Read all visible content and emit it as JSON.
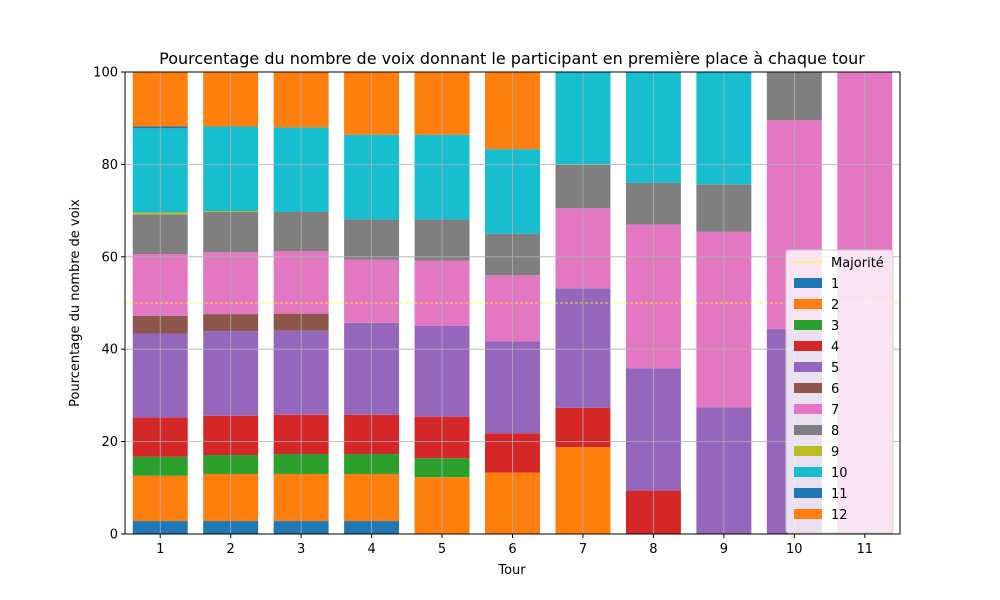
{
  "chart_data": {
    "type": "bar",
    "stacked": true,
    "title": "Pourcentage du nombre de voix donnant le participant en première place à chaque tour",
    "xlabel": "Tour",
    "ylabel": "Pourcentage du nombre de voix",
    "categories": [
      "1",
      "2",
      "3",
      "4",
      "5",
      "6",
      "7",
      "8",
      "9",
      "10",
      "11"
    ],
    "ylim": [
      0,
      100
    ],
    "yticks": [
      0,
      20,
      40,
      60,
      80,
      100
    ],
    "grid": true,
    "legend_position": "lower-right",
    "majority": {
      "name": "Majorité",
      "value": 50,
      "color": "#ffff00"
    },
    "series": [
      {
        "name": "1",
        "color": "#1f77b4",
        "values": [
          2.8,
          2.8,
          2.8,
          2.8,
          0,
          0,
          0,
          0,
          0,
          0,
          0
        ]
      },
      {
        "name": "2",
        "color": "#ff7f0e",
        "values": [
          9.8,
          10.2,
          10.2,
          10.2,
          12.3,
          13.3,
          18.8,
          0,
          0,
          0,
          0
        ]
      },
      {
        "name": "3",
        "color": "#2ca02c",
        "values": [
          4.1,
          4.1,
          4.3,
          4.3,
          4.1,
          0,
          0,
          0,
          0,
          0,
          0
        ]
      },
      {
        "name": "4",
        "color": "#d62728",
        "values": [
          8.5,
          8.5,
          8.5,
          8.5,
          9.0,
          8.5,
          8.5,
          9.4,
          0,
          0,
          0
        ]
      },
      {
        "name": "5",
        "color": "#9467bd",
        "values": [
          18.2,
          18.3,
          18.2,
          19.9,
          19.7,
          19.9,
          25.9,
          26.5,
          27.4,
          44.4,
          0
        ]
      },
      {
        "name": "6",
        "color": "#8c564b",
        "values": [
          3.8,
          3.7,
          3.7,
          0,
          0,
          0,
          0,
          0,
          0,
          0,
          0
        ]
      },
      {
        "name": "7",
        "color": "#e377c2",
        "values": [
          13.4,
          13.4,
          13.5,
          13.7,
          14.1,
          14.3,
          17.3,
          31.1,
          38.0,
          45.2,
          100
        ]
      },
      {
        "name": "8",
        "color": "#7f7f7f",
        "values": [
          8.6,
          8.7,
          8.5,
          8.7,
          8.9,
          9.0,
          9.4,
          9.0,
          10.3,
          10.4,
          0
        ]
      },
      {
        "name": "9",
        "color": "#bcbd22",
        "values": [
          0.4,
          0.2,
          0,
          0,
          0,
          0,
          0,
          0,
          0,
          0,
          0
        ]
      },
      {
        "name": "10",
        "color": "#17becf",
        "values": [
          18.2,
          18.3,
          18.3,
          18.3,
          18.3,
          18.3,
          20.1,
          24.0,
          24.3,
          0,
          0
        ]
      },
      {
        "name": "11",
        "color": "#1f77b4",
        "values": [
          0.4,
          0,
          0,
          0,
          0,
          0,
          0,
          0,
          0,
          0,
          0
        ]
      },
      {
        "name": "12",
        "color": "#ff7f0e",
        "values": [
          11.8,
          11.8,
          12.0,
          13.6,
          13.6,
          16.7,
          0,
          0,
          0,
          0,
          0
        ]
      }
    ]
  }
}
